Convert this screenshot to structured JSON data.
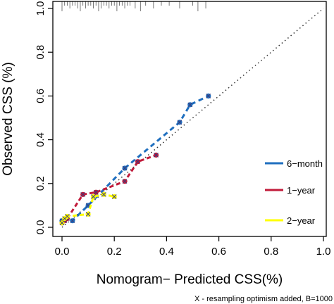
{
  "chart_data": {
    "type": "line",
    "xlabel": "Nomogram− Predicted CSS(%)",
    "ylabel": "Observed CSS (%)",
    "footnote": "X - resampling optimism added, B=1000",
    "xlim": [
      0,
      1.0
    ],
    "ylim": [
      0,
      1.0
    ],
    "x_ticks": [
      "0.0",
      "0.2",
      "0.4",
      "0.6",
      "0.8",
      "1.0"
    ],
    "y_ticks": [
      "0.0",
      "0.2",
      "0.4",
      "0.6",
      "0.8",
      "1.0"
    ],
    "grid": false,
    "reference_line": "diagonal dotted",
    "legend_position": "right",
    "rug_top": [
      0.0,
      0.01,
      0.02,
      0.03,
      0.04,
      0.05,
      0.06,
      0.07,
      0.08,
      0.09,
      0.1,
      0.11,
      0.12,
      0.13,
      0.14,
      0.15,
      0.16,
      0.17,
      0.18,
      0.19,
      0.2,
      0.21,
      0.22,
      0.23,
      0.24,
      0.25,
      0.26,
      0.28,
      0.3,
      0.32,
      0.35,
      0.38,
      0.41,
      0.45,
      0.5,
      0.52,
      0.55
    ],
    "series": [
      {
        "name": "6−month",
        "color": "#1f6fbf",
        "x": [
          0.0,
          0.04,
          0.1,
          0.24,
          0.45,
          0.49,
          0.56
        ],
        "y": [
          0.03,
          0.03,
          0.1,
          0.27,
          0.48,
          0.56,
          0.6
        ]
      },
      {
        "name": "1−year",
        "color": "#c21a3a",
        "x": [
          0.0,
          0.01,
          0.02,
          0.08,
          0.13,
          0.24,
          0.29,
          0.36
        ],
        "y": [
          0.02,
          0.03,
          0.04,
          0.15,
          0.16,
          0.21,
          0.3,
          0.33
        ]
      },
      {
        "name": "2−year",
        "color": "#ffff00",
        "x": [
          0.0,
          0.01,
          0.02,
          0.1,
          0.12,
          0.16,
          0.2
        ],
        "y": [
          0.02,
          0.04,
          0.05,
          0.06,
          0.14,
          0.15,
          0.14
        ]
      }
    ]
  }
}
